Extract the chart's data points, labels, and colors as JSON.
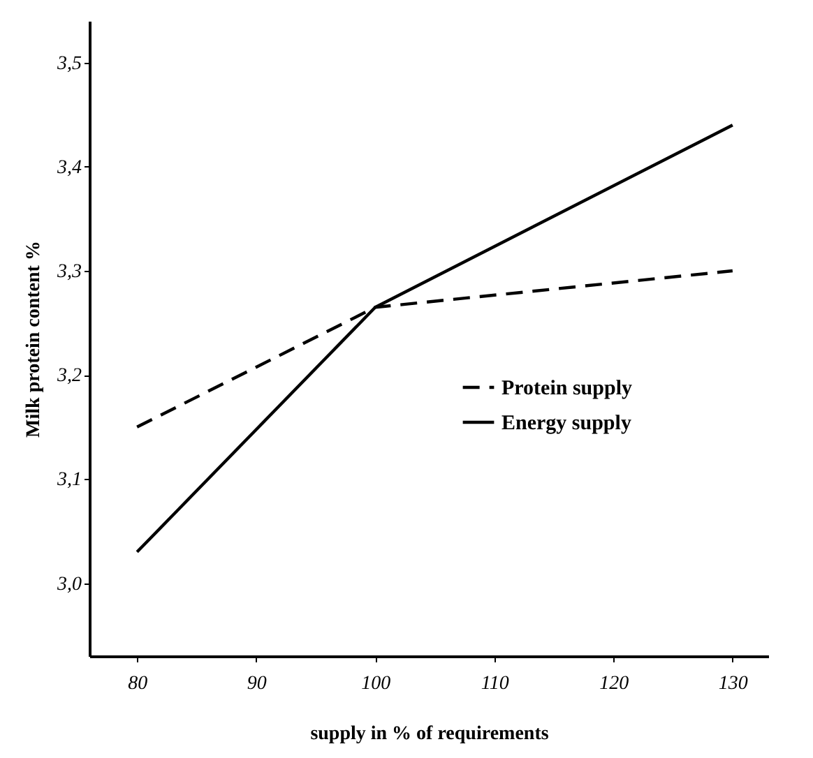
{
  "chart_data": {
    "type": "line",
    "xlabel": "supply in % of requirements",
    "ylabel": "Milk protein content %",
    "x": [
      80,
      100,
      130
    ],
    "series": [
      {
        "name": "Protein supply",
        "color": "#000000",
        "line_style": "dashed",
        "values": [
          3.15,
          3.265,
          3.3
        ]
      },
      {
        "name": "Energy supply",
        "color": "#000000",
        "line_style": "solid",
        "values": [
          3.03,
          3.265,
          3.44
        ]
      }
    ],
    "xlim": [
      76,
      133
    ],
    "xticks": [
      80,
      90,
      100,
      110,
      120,
      130
    ],
    "ylim": [
      2.93,
      3.54
    ],
    "yticks": [
      {
        "value": 3.0,
        "label": "3,0"
      },
      {
        "value": 3.1,
        "label": "3,1"
      },
      {
        "value": 3.2,
        "label": "3,2"
      },
      {
        "value": 3.3,
        "label": "3,3"
      },
      {
        "value": 3.4,
        "label": "3,4"
      },
      {
        "value": 3.5,
        "label": "3,5"
      }
    ],
    "grid": false,
    "legend": "right",
    "marker": "none"
  }
}
